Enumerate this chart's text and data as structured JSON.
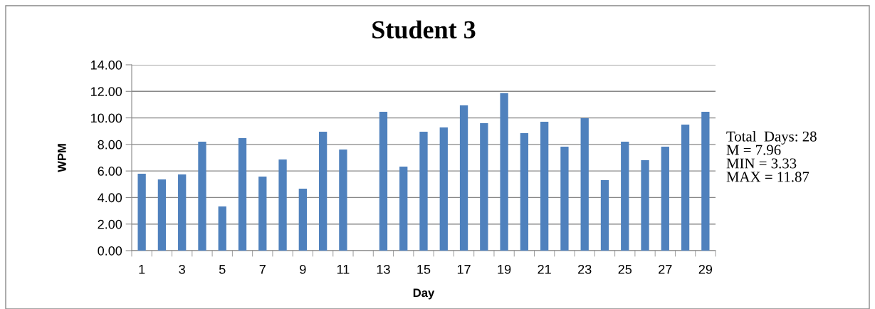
{
  "chart_data": {
    "type": "bar",
    "title": "Student 3",
    "xlabel": "Day",
    "ylabel": "WPM",
    "categories": [
      "1",
      null,
      "3",
      null,
      "5",
      null,
      "7",
      null,
      "9",
      null,
      "11",
      null,
      "13",
      null,
      "15",
      null,
      "17",
      null,
      "19",
      null,
      "21",
      null,
      "23",
      null,
      "25",
      null,
      "27",
      null,
      "29"
    ],
    "values": [
      5.79,
      5.36,
      5.74,
      8.21,
      3.33,
      8.48,
      5.58,
      6.87,
      4.67,
      8.96,
      7.62,
      null,
      10.46,
      6.33,
      8.96,
      9.28,
      10.94,
      9.6,
      11.87,
      8.85,
      9.71,
      7.83,
      9.98,
      5.31,
      8.21,
      6.81,
      7.83,
      9.5,
      10.46
    ],
    "color": "#4f81bd",
    "ylim": [
      0,
      14
    ],
    "yticks": [
      {
        "value": 0,
        "label": "0.00"
      },
      {
        "value": 2,
        "label": "2.00"
      },
      {
        "value": 4,
        "label": "4.00"
      },
      {
        "value": 6,
        "label": "6.00"
      },
      {
        "value": 8,
        "label": "8.00"
      },
      {
        "value": 10,
        "label": "10.00"
      },
      {
        "value": 12,
        "label": "12.00"
      },
      {
        "value": 14,
        "label": "14.00"
      }
    ],
    "grid": "y",
    "annotations": [
      "Total  Days: 28\nM = 7.96\nMIN = 3.33\nMAX = 11.87"
    ]
  }
}
